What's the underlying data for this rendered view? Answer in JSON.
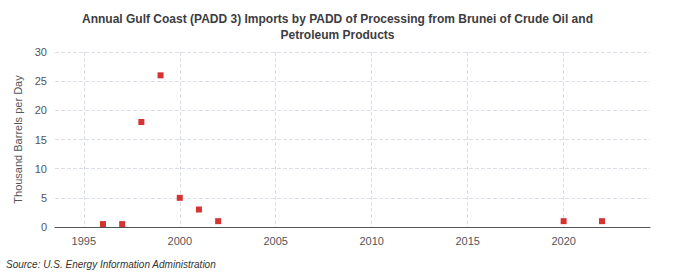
{
  "chart_data": {
    "type": "scatter",
    "title": "Annual Gulf Coast (PADD 3) Imports by PADD of Processing from Brunei of Crude Oil and\nPetroleum Products",
    "ylabel": "Thousand Barrels per Day",
    "annotation": "Source: U.S. Energy Information Administration",
    "x": [
      1996,
      1997,
      1998,
      1999,
      2000,
      2001,
      2002,
      2020,
      2022
    ],
    "values": [
      0.5,
      0.5,
      18,
      26,
      5,
      3,
      1,
      1,
      1
    ],
    "color": "#cc0000",
    "marker": "square",
    "xlim": [
      1993.5,
      2024.5
    ],
    "xticks": [
      1995,
      2000,
      2005,
      2010,
      2015,
      2020
    ],
    "ylim": [
      0,
      30
    ],
    "yticks": [
      0,
      5,
      10,
      15,
      20,
      25,
      30
    ],
    "grid": true
  }
}
